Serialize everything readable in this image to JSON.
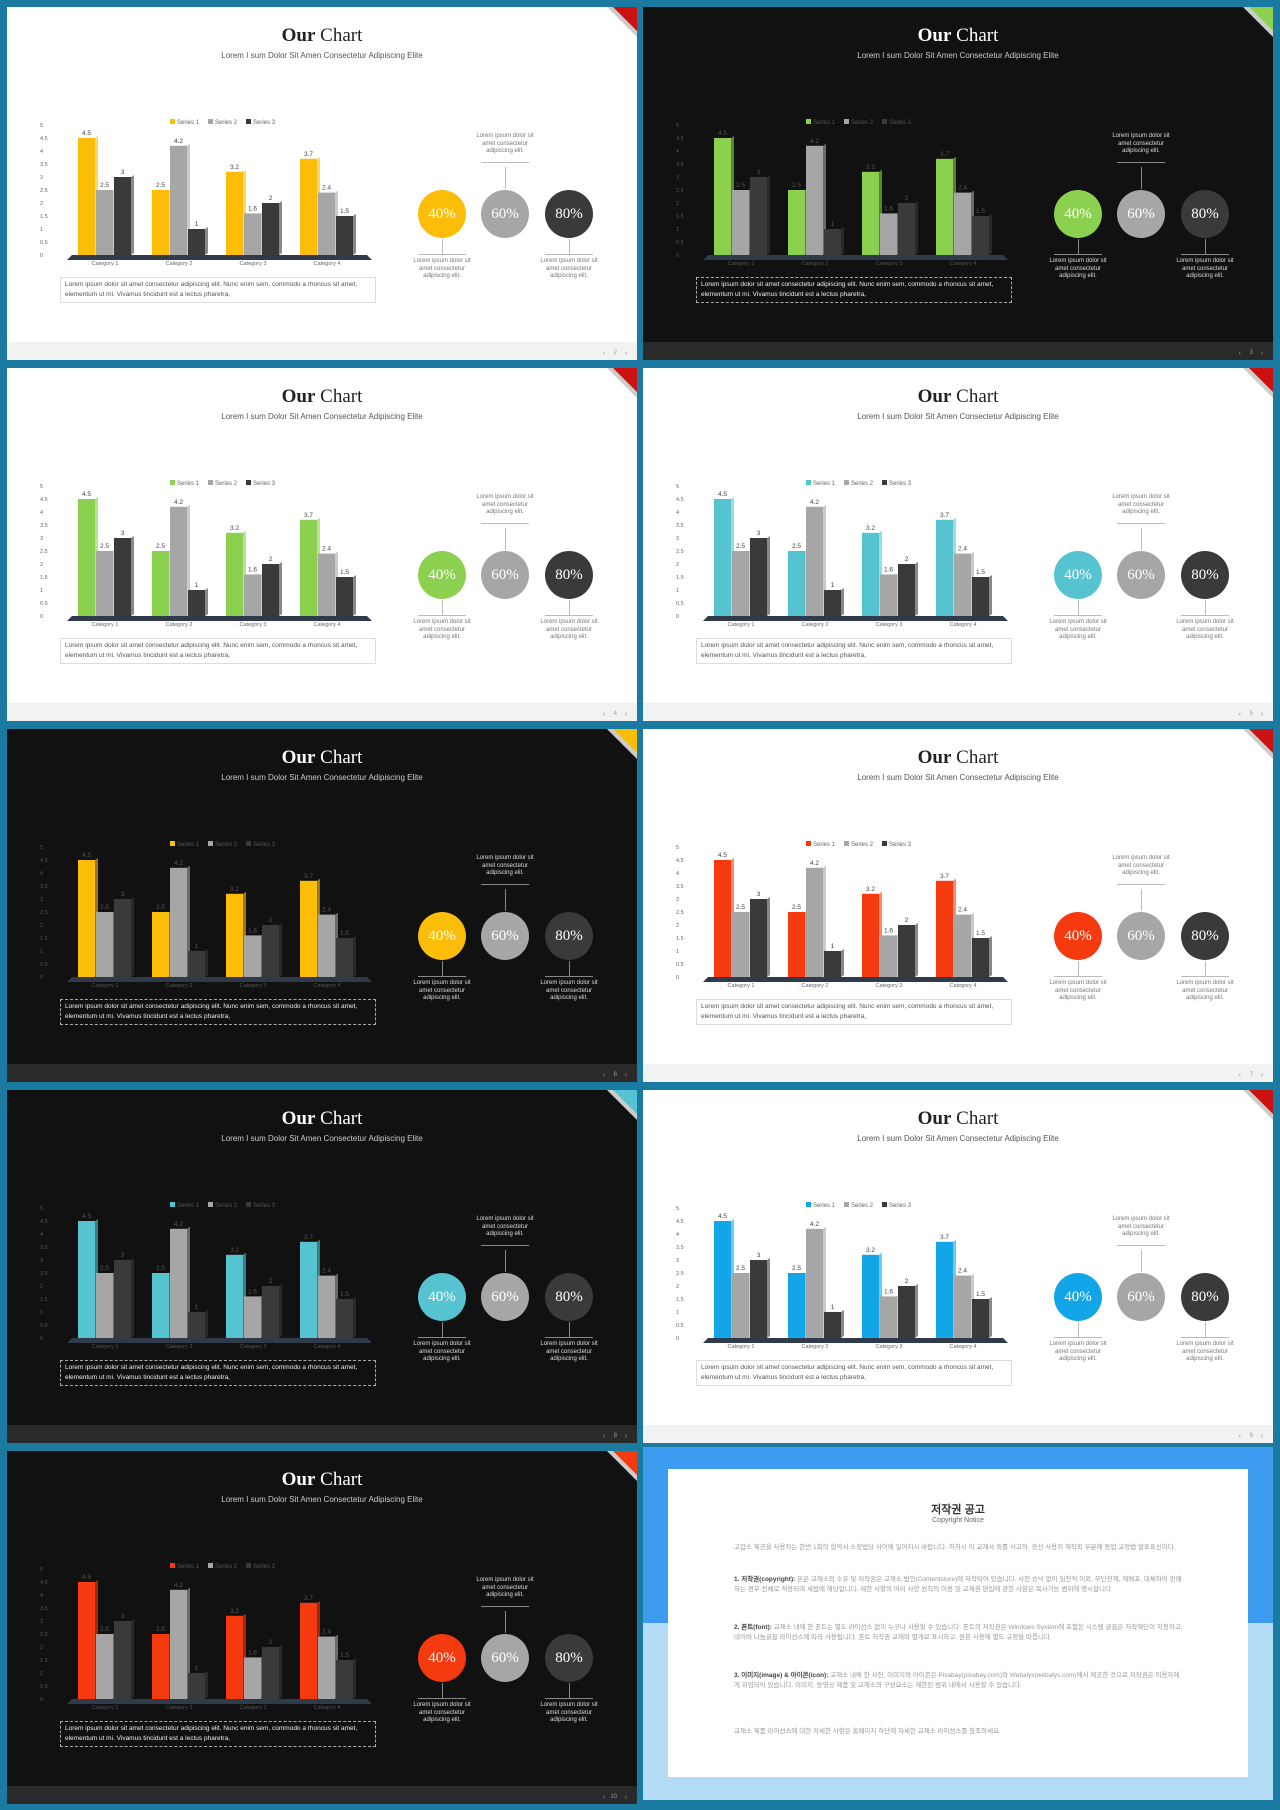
{
  "common": {
    "title_bold": "Our",
    "title_rest": "Chart",
    "subtitle": "Lorem I sum Dolor Sit Amen Consectetur Adipiscing Elite",
    "description": "Lorem ipsum dolor sit amet consectetur adipiscing elit. Nunc enim sem, commodo a rhoncus sit amet, elementum ut mi. Vivamus tincidunt est a lectus pharetra,",
    "caption": "Lorem ipsum dolor sit amet consectetur adipiscing elit.",
    "circle_labels": [
      "40%",
      "60%",
      "80%"
    ],
    "gray_light": "#a6a6a6",
    "gray_dark": "#3a3a3a"
  },
  "chart_data": {
    "type": "bar",
    "categories": [
      "Category 1",
      "Category 2",
      "Category 3",
      "Category 4"
    ],
    "series": [
      {
        "name": "Series 1",
        "values": [
          4.5,
          2.5,
          3.2,
          3.7
        ]
      },
      {
        "name": "Series 2",
        "values": [
          2.5,
          4.2,
          1.6,
          2.4
        ]
      },
      {
        "name": "Series 3",
        "values": [
          3,
          1,
          2,
          1.5
        ]
      }
    ],
    "yticks": [
      "0",
      "0.5",
      "1",
      "1.5",
      "2",
      "2.5",
      "3",
      "3.5",
      "4",
      "4.5",
      "5"
    ],
    "ylim": [
      0,
      5
    ],
    "legend": "top"
  },
  "slides": [
    {
      "theme": "light",
      "accent": "#fbbd08",
      "corner": "#cc1111",
      "page": "2"
    },
    {
      "theme": "dark",
      "accent": "#8bd14f",
      "corner": "#8bd14f",
      "page": "3"
    },
    {
      "theme": "light",
      "accent": "#8bd14f",
      "corner": "#cc1111",
      "page": "4"
    },
    {
      "theme": "light",
      "accent": "#56c4d0",
      "corner": "#cc1111",
      "page": "5"
    },
    {
      "theme": "dark",
      "accent": "#fbbd08",
      "corner": "#fbbd08",
      "page": "6"
    },
    {
      "theme": "light",
      "accent": "#f53a0f",
      "corner": "#cc1111",
      "page": "7"
    },
    {
      "theme": "dark",
      "accent": "#56c4d0",
      "corner": "#56c4d0",
      "page": "8"
    },
    {
      "theme": "light",
      "accent": "#12a5e8",
      "corner": "#cc1111",
      "page": "9"
    },
    {
      "theme": "dark",
      "accent": "#f53a0f",
      "corner": "#f53a0f",
      "page": "10"
    }
  ],
  "copyright": {
    "title": "저작권 공고",
    "subtitle": "Copyright Notice",
    "intro": "고맙소 제공을 사용자는 한번 1회의 협약서 소정법당 사이에 일어지시 바랍니다. 허하시 이 교재사 외를 사고하, 경선 사용지 재작피 부분에 등업 교정법 발표표신이다.",
    "p1_head": "1. 저작권(copyright):",
    "p1": "본은 교재소의 소유 및 저작권은 교재소 법인(Contentstore)에 저작되어 있습니다. 사전 승낙 없이 임전적 이외, 무단전재, 재배포, 대체하여 판매하는 경우 전체로 적용되며 세법에 해당합니다. 제한 사항의 여러 사양 원칙의 이용 및 교재권 편집에 관한 사항은 복사가능 범위에 명시합니다.",
    "p2_head": "2. 폰트(font):",
    "p2": "교재소 내에 한 폰트는 별도 라이선스 없이 누구나 사용할 수 있습니다. 폰트의 저작권은 Windows System에 포함된 시스템 글꼴은 저작재단이 지정하고, 네이버 나눔글꼴 라이선스에 따라 사용됩니다. 폰트 저작권 교재와 별개로 표시하고, 원본 사용에 별도 규정을 따릅니다.",
    "p3_head": "3. 이미지(image) & 아이콘(icon):",
    "p3": "교재소 내에 한 사진, 이미지와 아이콘은 Pixabay(pixabay.com)와 Webalys(webalys.com)에서 제공한 것으로 저작권은 이용자에게 위임되어 있습니다. 이미지, 동영상 제품 및 교재소의 구성요소는 제한된 범위 내에서 사용할 수 있습니다.",
    "outro": "교재소 제품 라이선스에 대한 자세한 사항은 홈페이지 하단에 자세한 교재소 라이선스를 참조하세요."
  }
}
